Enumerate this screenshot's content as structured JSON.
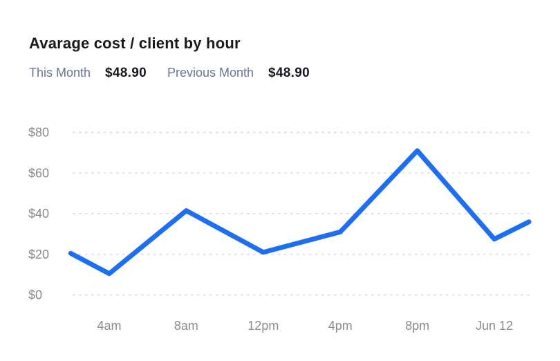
{
  "header": {
    "title": "Avarage cost / client by hour",
    "legend": {
      "this_month": {
        "label": "This Month",
        "value": "$48.90"
      },
      "previous_month": {
        "label": "Previous Month",
        "value": "$48.90"
      }
    }
  },
  "theme": {
    "background": "#ffffff",
    "accent_blue": "#1e6ef2",
    "grid_line": "#dde1f0",
    "axis_text": "#8a8a8f",
    "title_text": "#17191e",
    "legend_label_text": "#6b7294",
    "legend_value_text": "#16181d"
  },
  "chart_data": {
    "type": "line",
    "title": "Avarage cost / client by hour",
    "xlabel": "",
    "ylabel": "",
    "x_tick_labels": [
      "4am",
      "8am",
      "12pm",
      "4pm",
      "8pm",
      "Jun 12"
    ],
    "y_tick_labels": [
      "$0",
      "$20",
      "$40",
      "$60",
      "$80"
    ],
    "ylim": [
      0,
      80
    ],
    "grid": "horizontal-dashed",
    "legend_position": "top-left-header",
    "x_unit": "tick-index (0 = 4am ... 5 = Jun 12; fractional = between ticks)",
    "series": [
      {
        "name": "This Month",
        "color": "#1e6ef2",
        "points": [
          {
            "x": -0.5,
            "y": 20.5
          },
          {
            "x": 0,
            "y": 10.5
          },
          {
            "x": 1,
            "y": 41.5
          },
          {
            "x": 2,
            "y": 21
          },
          {
            "x": 3,
            "y": 31
          },
          {
            "x": 4,
            "y": 71
          },
          {
            "x": 5,
            "y": 27.5
          },
          {
            "x": 5.45,
            "y": 36
          }
        ]
      }
    ]
  }
}
